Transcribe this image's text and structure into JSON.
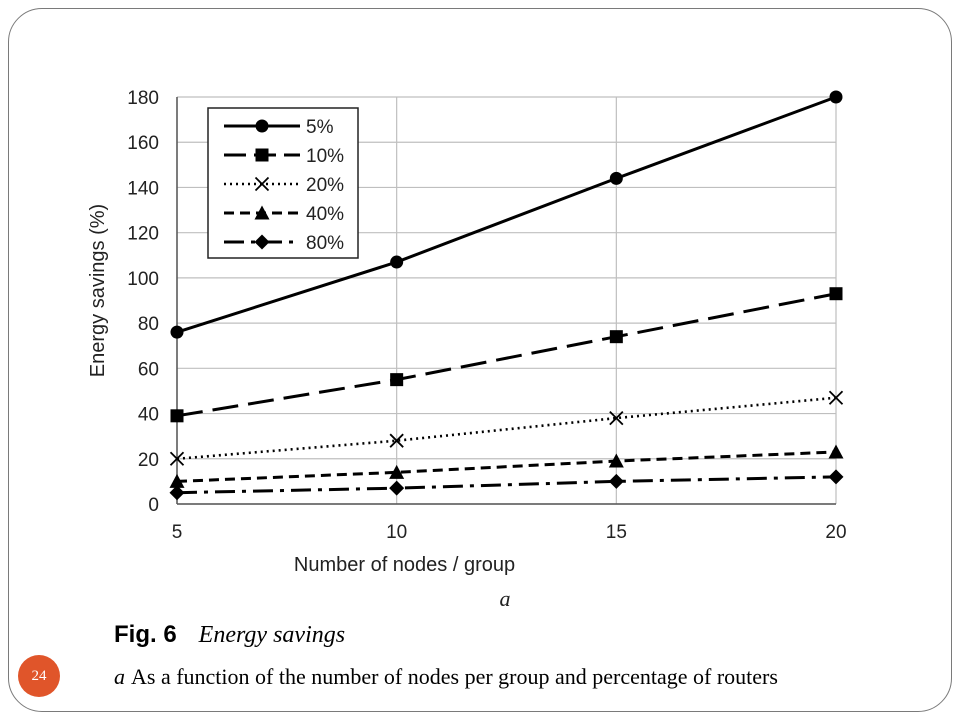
{
  "page_number": "24",
  "figure": {
    "label": "Fig. 6",
    "title": "Energy savings",
    "caption_letter": "a",
    "caption_text": "As a function of the number of nodes per group and percentage of routers"
  },
  "colors": {
    "accent": "#e0552a",
    "series": "#000000",
    "grid": "#bfbfbf"
  },
  "chart_data": {
    "type": "line",
    "subfigure_label": "a",
    "xlabel": "Number of nodes / group",
    "ylabel": "Energy savings (%)",
    "x": [
      5,
      10,
      15,
      20
    ],
    "x_ticks": [
      "5",
      "10",
      "15",
      "20"
    ],
    "y_ticks": [
      "0",
      "20",
      "40",
      "60",
      "80",
      "100",
      "120",
      "140",
      "160",
      "180"
    ],
    "xlim": [
      5,
      20
    ],
    "ylim": [
      0,
      180
    ],
    "grid": true,
    "legend_position": "top-left",
    "series": [
      {
        "name": "5%",
        "values": [
          76,
          107,
          144,
          180
        ],
        "marker": "circle",
        "line": "solid"
      },
      {
        "name": "10%",
        "values": [
          39,
          55,
          74,
          93
        ],
        "marker": "square",
        "line": "long-dash"
      },
      {
        "name": "20%",
        "values": [
          20,
          28,
          38,
          47
        ],
        "marker": "x",
        "line": "dotted"
      },
      {
        "name": "40%",
        "values": [
          10,
          14,
          19,
          23
        ],
        "marker": "triangle",
        "line": "dashed"
      },
      {
        "name": "80%",
        "values": [
          5,
          7,
          10,
          12
        ],
        "marker": "diamond",
        "line": "dash-dot"
      }
    ]
  }
}
